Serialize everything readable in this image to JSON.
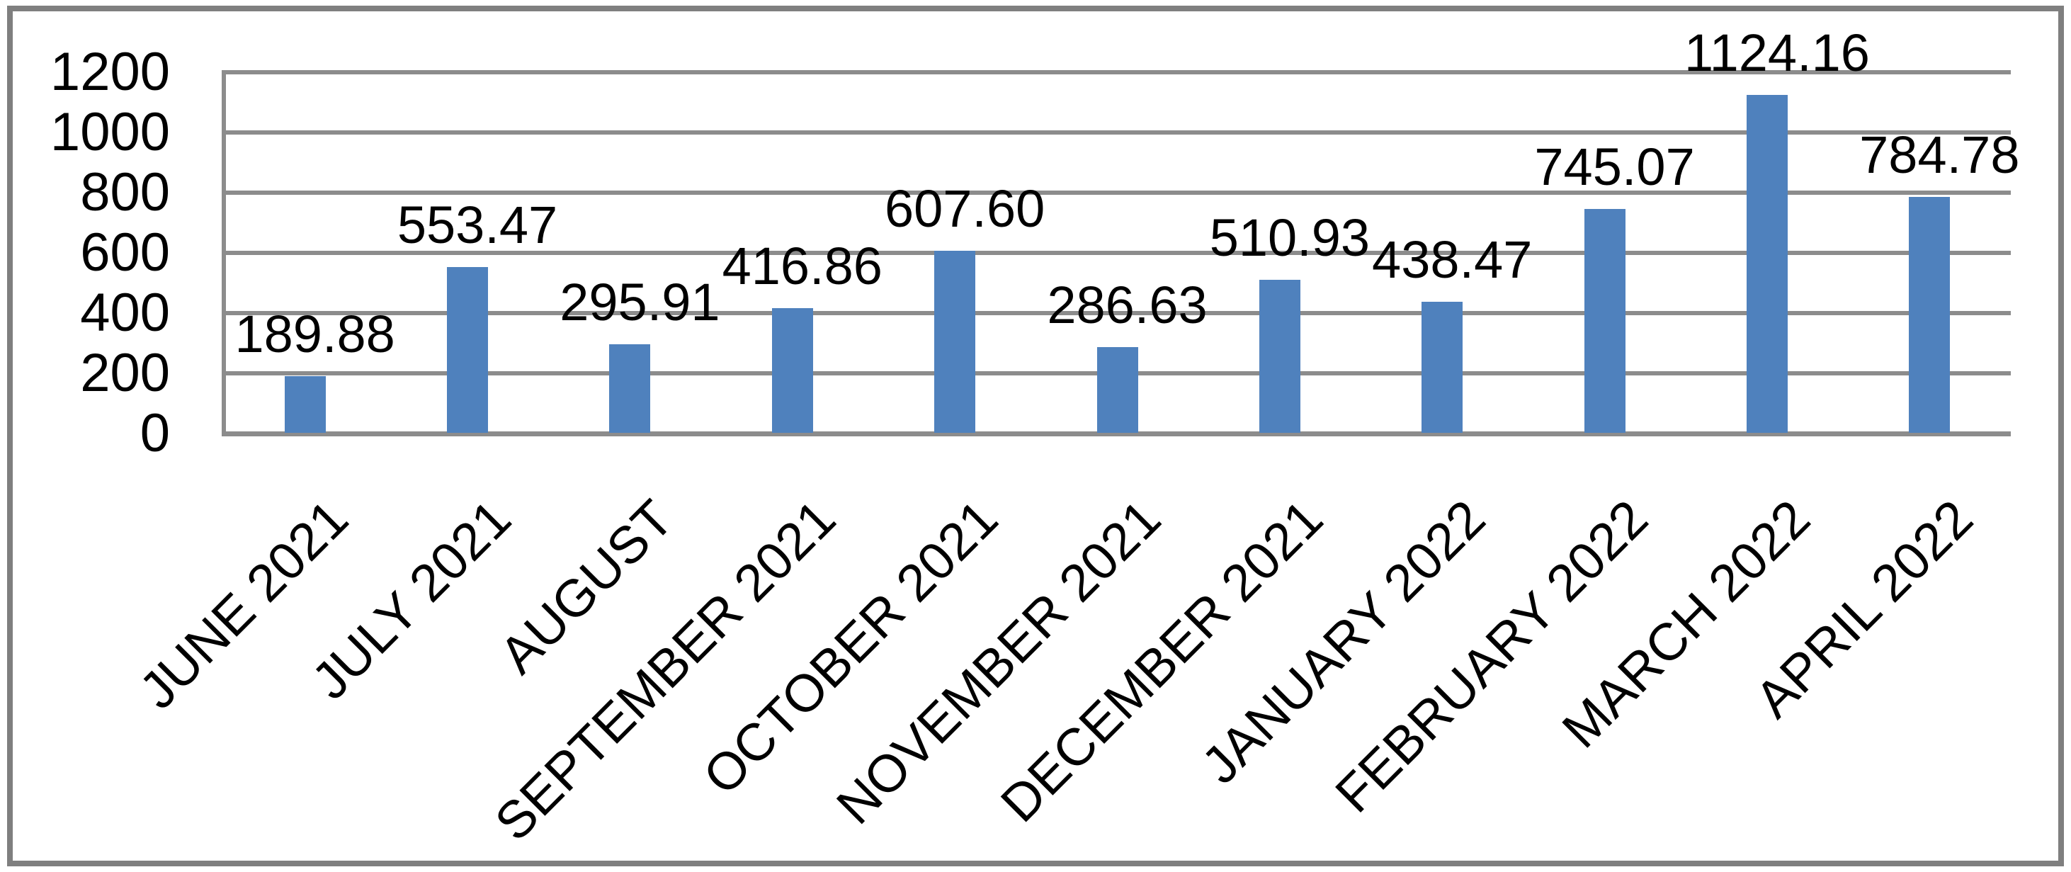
{
  "chart_data": {
    "type": "bar",
    "title": "",
    "xlabel": "",
    "ylabel": "",
    "categories": [
      "JUNE 2021",
      "JULY 2021",
      "AUGUST",
      "SEPTEMBER 2021",
      "OCTOBER 2021",
      "NOVEMBER 2021",
      "DECEMBER 2021",
      "JANUARY 2022",
      "FEBRUARY 2022",
      "MARCH 2022",
      "APRIL 2022"
    ],
    "values": [
      189.88,
      553.47,
      295.91,
      416.86,
      607.6,
      286.63,
      510.93,
      438.47,
      745.07,
      1124.16,
      784.78
    ],
    "data_labels": [
      "189.88",
      "553.47",
      "295.91",
      "416.86",
      "607.60",
      "286.63",
      "510.93",
      "438.47",
      "745.07",
      "1124.16",
      "784.78"
    ],
    "y_ticks": [
      "0",
      "200",
      "400",
      "600",
      "800",
      "1000",
      "1200"
    ],
    "ylim": [
      0,
      1200
    ],
    "legend_position": "none",
    "grid": "horizontal-major",
    "x_label_rotation_deg": 45,
    "colors": {
      "bar_fill": "#4F81BD",
      "gridline": "#8C8C8C",
      "axis_line": "#8C8C8C",
      "outer_border": "#7F7F7F",
      "text": "#000000",
      "background": "#FFFFFF"
    }
  }
}
